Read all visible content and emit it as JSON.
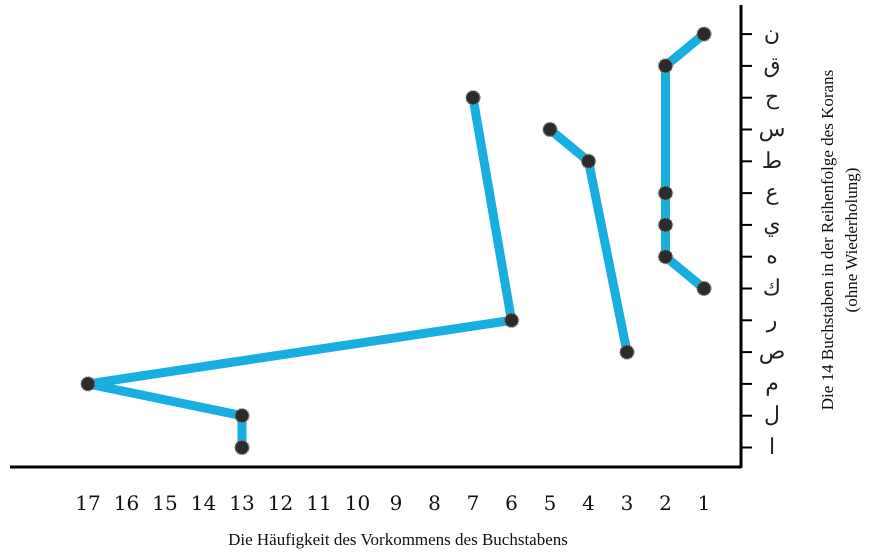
{
  "chart_data": {
    "type": "line",
    "title": "",
    "xlabel": "Die Häufigkeit des Vorkommens des Buchstabens",
    "ylabel": [
      "Die 14 Buchstaben in der Reihenfolge des Korans",
      "(ohne Wiederholung)"
    ],
    "x_ticks": [
      17,
      16,
      15,
      14,
      13,
      12,
      11,
      10,
      9,
      8,
      7,
      6,
      5,
      4,
      3,
      2,
      1
    ],
    "x_reversed": true,
    "y_categories": [
      "ا",
      "ل",
      "م",
      "ص",
      "ر",
      "ك",
      "ه",
      "ي",
      "ع",
      "ط",
      "س",
      "ح",
      "ق",
      "ن"
    ],
    "series": [
      {
        "points": [
          {
            "x": 13,
            "y": "ا"
          },
          {
            "x": 13,
            "y": "ل"
          },
          {
            "x": 17,
            "y": "م"
          },
          {
            "x": 6,
            "y": "ر"
          },
          {
            "x": 7,
            "y": "ح"
          }
        ]
      },
      {
        "points": [
          {
            "x": 3,
            "y": "ص"
          },
          {
            "x": 4,
            "y": "ط"
          },
          {
            "x": 5,
            "y": "س"
          }
        ]
      },
      {
        "points": [
          {
            "x": 1,
            "y": "ك"
          },
          {
            "x": 2,
            "y": "ه"
          },
          {
            "x": 2,
            "y": "ي"
          },
          {
            "x": 2,
            "y": "ع"
          },
          {
            "x": 2,
            "y": "ق"
          },
          {
            "x": 1,
            "y": "ن"
          }
        ]
      }
    ],
    "line_color": "#18aee0",
    "marker_color": "#2b2b2b",
    "grid": false,
    "legend": "none"
  }
}
